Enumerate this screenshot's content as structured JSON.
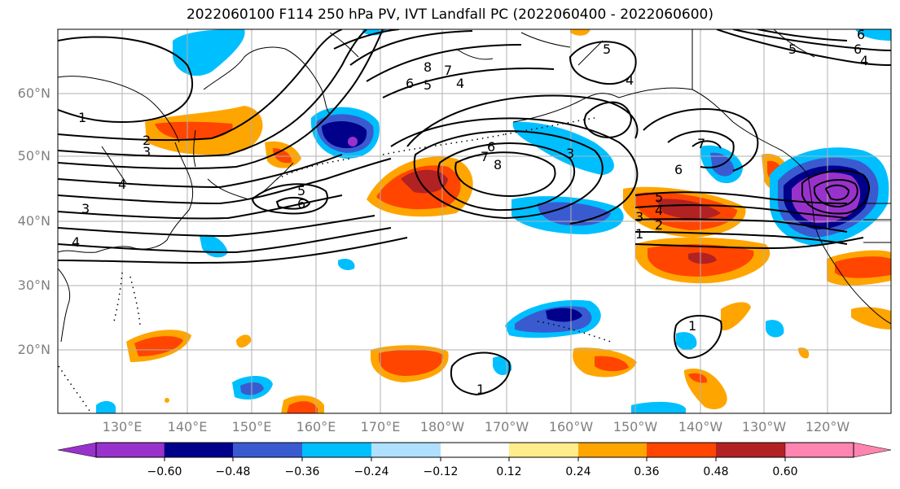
{
  "title": "2022060100 F114 250 hPa PV, IVT Landfall PC (2022060400 - 2022060600)",
  "axes": {
    "lat_ticks": [
      "60°N",
      "50°N",
      "40°N",
      "30°N",
      "20°N"
    ],
    "lon_ticks": [
      "130°E",
      "140°E",
      "150°E",
      "160°E",
      "170°E",
      "180°W",
      "170°W",
      "160°W",
      "150°W",
      "140°W",
      "130°W",
      "120°W"
    ]
  },
  "colorbar": {
    "ticks": [
      "−0.60",
      "−0.48",
      "−0.36",
      "−0.24",
      "−0.12",
      "0.12",
      "0.24",
      "0.36",
      "0.48",
      "0.60"
    ],
    "colors": [
      "#9932CC",
      "#00008B",
      "#3A5BD0",
      "#00BFFF",
      "#B0E0FF",
      "#FFFFFF",
      "#FFEC8B",
      "#FFA500",
      "#FF4500",
      "#B22222",
      "#FF85B0"
    ]
  },
  "contour_labels": [
    "1",
    "2",
    "3",
    "4",
    "5",
    "6",
    "7",
    "8"
  ],
  "colors": {
    "grid": "#b0b0b0",
    "contour": "#000000",
    "coast": "#000000"
  }
}
